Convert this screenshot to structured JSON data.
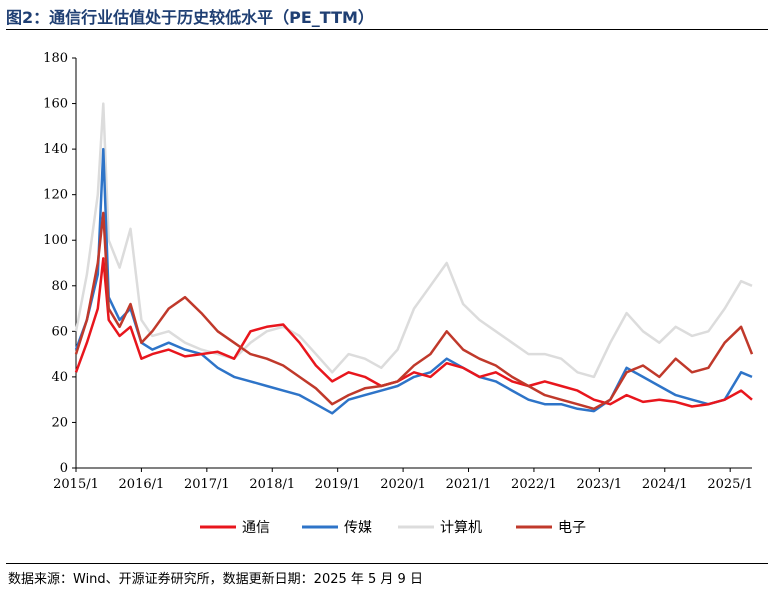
{
  "title": "图2：通信行业估值处于历史较低水平（PE_TTM）",
  "source": "数据来源：Wind、开源证券研究所，数据更新日期：2025 年 5 月 9 日",
  "chart_data": {
    "type": "line",
    "title": "通信行业估值处于历史较低水平（PE_TTM）",
    "xlabel": "",
    "ylabel": "",
    "x_ticks": [
      "2015/1",
      "2016/1",
      "2017/1",
      "2018/1",
      "2019/1",
      "2020/1",
      "2021/1",
      "2022/1",
      "2023/1",
      "2024/1",
      "2025/1"
    ],
    "y_ticks": [
      0,
      20,
      40,
      60,
      80,
      100,
      120,
      140,
      160,
      180
    ],
    "ylim": [
      0,
      180
    ],
    "xlim": [
      "2015-01",
      "2025-05"
    ],
    "grid": false,
    "legend": "bottom",
    "x": [
      "2015-01",
      "2015-03",
      "2015-05",
      "2015-06",
      "2015-07",
      "2015-09",
      "2015-11",
      "2016-01",
      "2016-03",
      "2016-06",
      "2016-09",
      "2016-12",
      "2017-03",
      "2017-06",
      "2017-09",
      "2017-12",
      "2018-03",
      "2018-06",
      "2018-09",
      "2018-12",
      "2019-03",
      "2019-06",
      "2019-09",
      "2019-12",
      "2020-03",
      "2020-06",
      "2020-09",
      "2020-12",
      "2021-03",
      "2021-06",
      "2021-09",
      "2021-12",
      "2022-03",
      "2022-06",
      "2022-09",
      "2022-12",
      "2023-03",
      "2023-06",
      "2023-09",
      "2023-12",
      "2024-03",
      "2024-06",
      "2024-09",
      "2024-12",
      "2025-03",
      "2025-05"
    ],
    "series": [
      {
        "name": "通信",
        "color": "#e8161d",
        "values": [
          42,
          55,
          70,
          92,
          65,
          58,
          62,
          48,
          50,
          52,
          49,
          50,
          51,
          48,
          60,
          62,
          63,
          55,
          45,
          38,
          42,
          40,
          36,
          38,
          42,
          40,
          46,
          44,
          40,
          42,
          38,
          36,
          38,
          36,
          34,
          30,
          28,
          32,
          29,
          30,
          29,
          27,
          28,
          30,
          34,
          30
        ]
      },
      {
        "name": "传媒",
        "color": "#2e74c8",
        "values": [
          52,
          65,
          85,
          140,
          75,
          65,
          70,
          55,
          52,
          55,
          52,
          50,
          44,
          40,
          38,
          36,
          34,
          32,
          28,
          24,
          30,
          32,
          34,
          36,
          40,
          42,
          48,
          44,
          40,
          38,
          34,
          30,
          28,
          28,
          26,
          25,
          30,
          44,
          40,
          36,
          32,
          30,
          28,
          30,
          42,
          40
        ]
      },
      {
        "name": "计算机",
        "color": "#dcdcdc",
        "values": [
          60,
          85,
          120,
          160,
          100,
          88,
          105,
          65,
          58,
          60,
          55,
          52,
          50,
          48,
          55,
          60,
          62,
          58,
          50,
          42,
          50,
          48,
          44,
          52,
          70,
          80,
          90,
          72,
          65,
          60,
          55,
          50,
          50,
          48,
          42,
          40,
          55,
          68,
          60,
          55,
          62,
          58,
          60,
          70,
          82,
          80
        ]
      },
      {
        "name": "电子",
        "color": "#c0392b",
        "values": [
          50,
          65,
          90,
          112,
          70,
          62,
          72,
          55,
          60,
          70,
          75,
          68,
          60,
          55,
          50,
          48,
          45,
          40,
          35,
          28,
          32,
          35,
          36,
          38,
          45,
          50,
          60,
          52,
          48,
          45,
          40,
          36,
          32,
          30,
          28,
          26,
          30,
          42,
          45,
          40,
          48,
          42,
          44,
          55,
          62,
          50
        ]
      }
    ]
  }
}
